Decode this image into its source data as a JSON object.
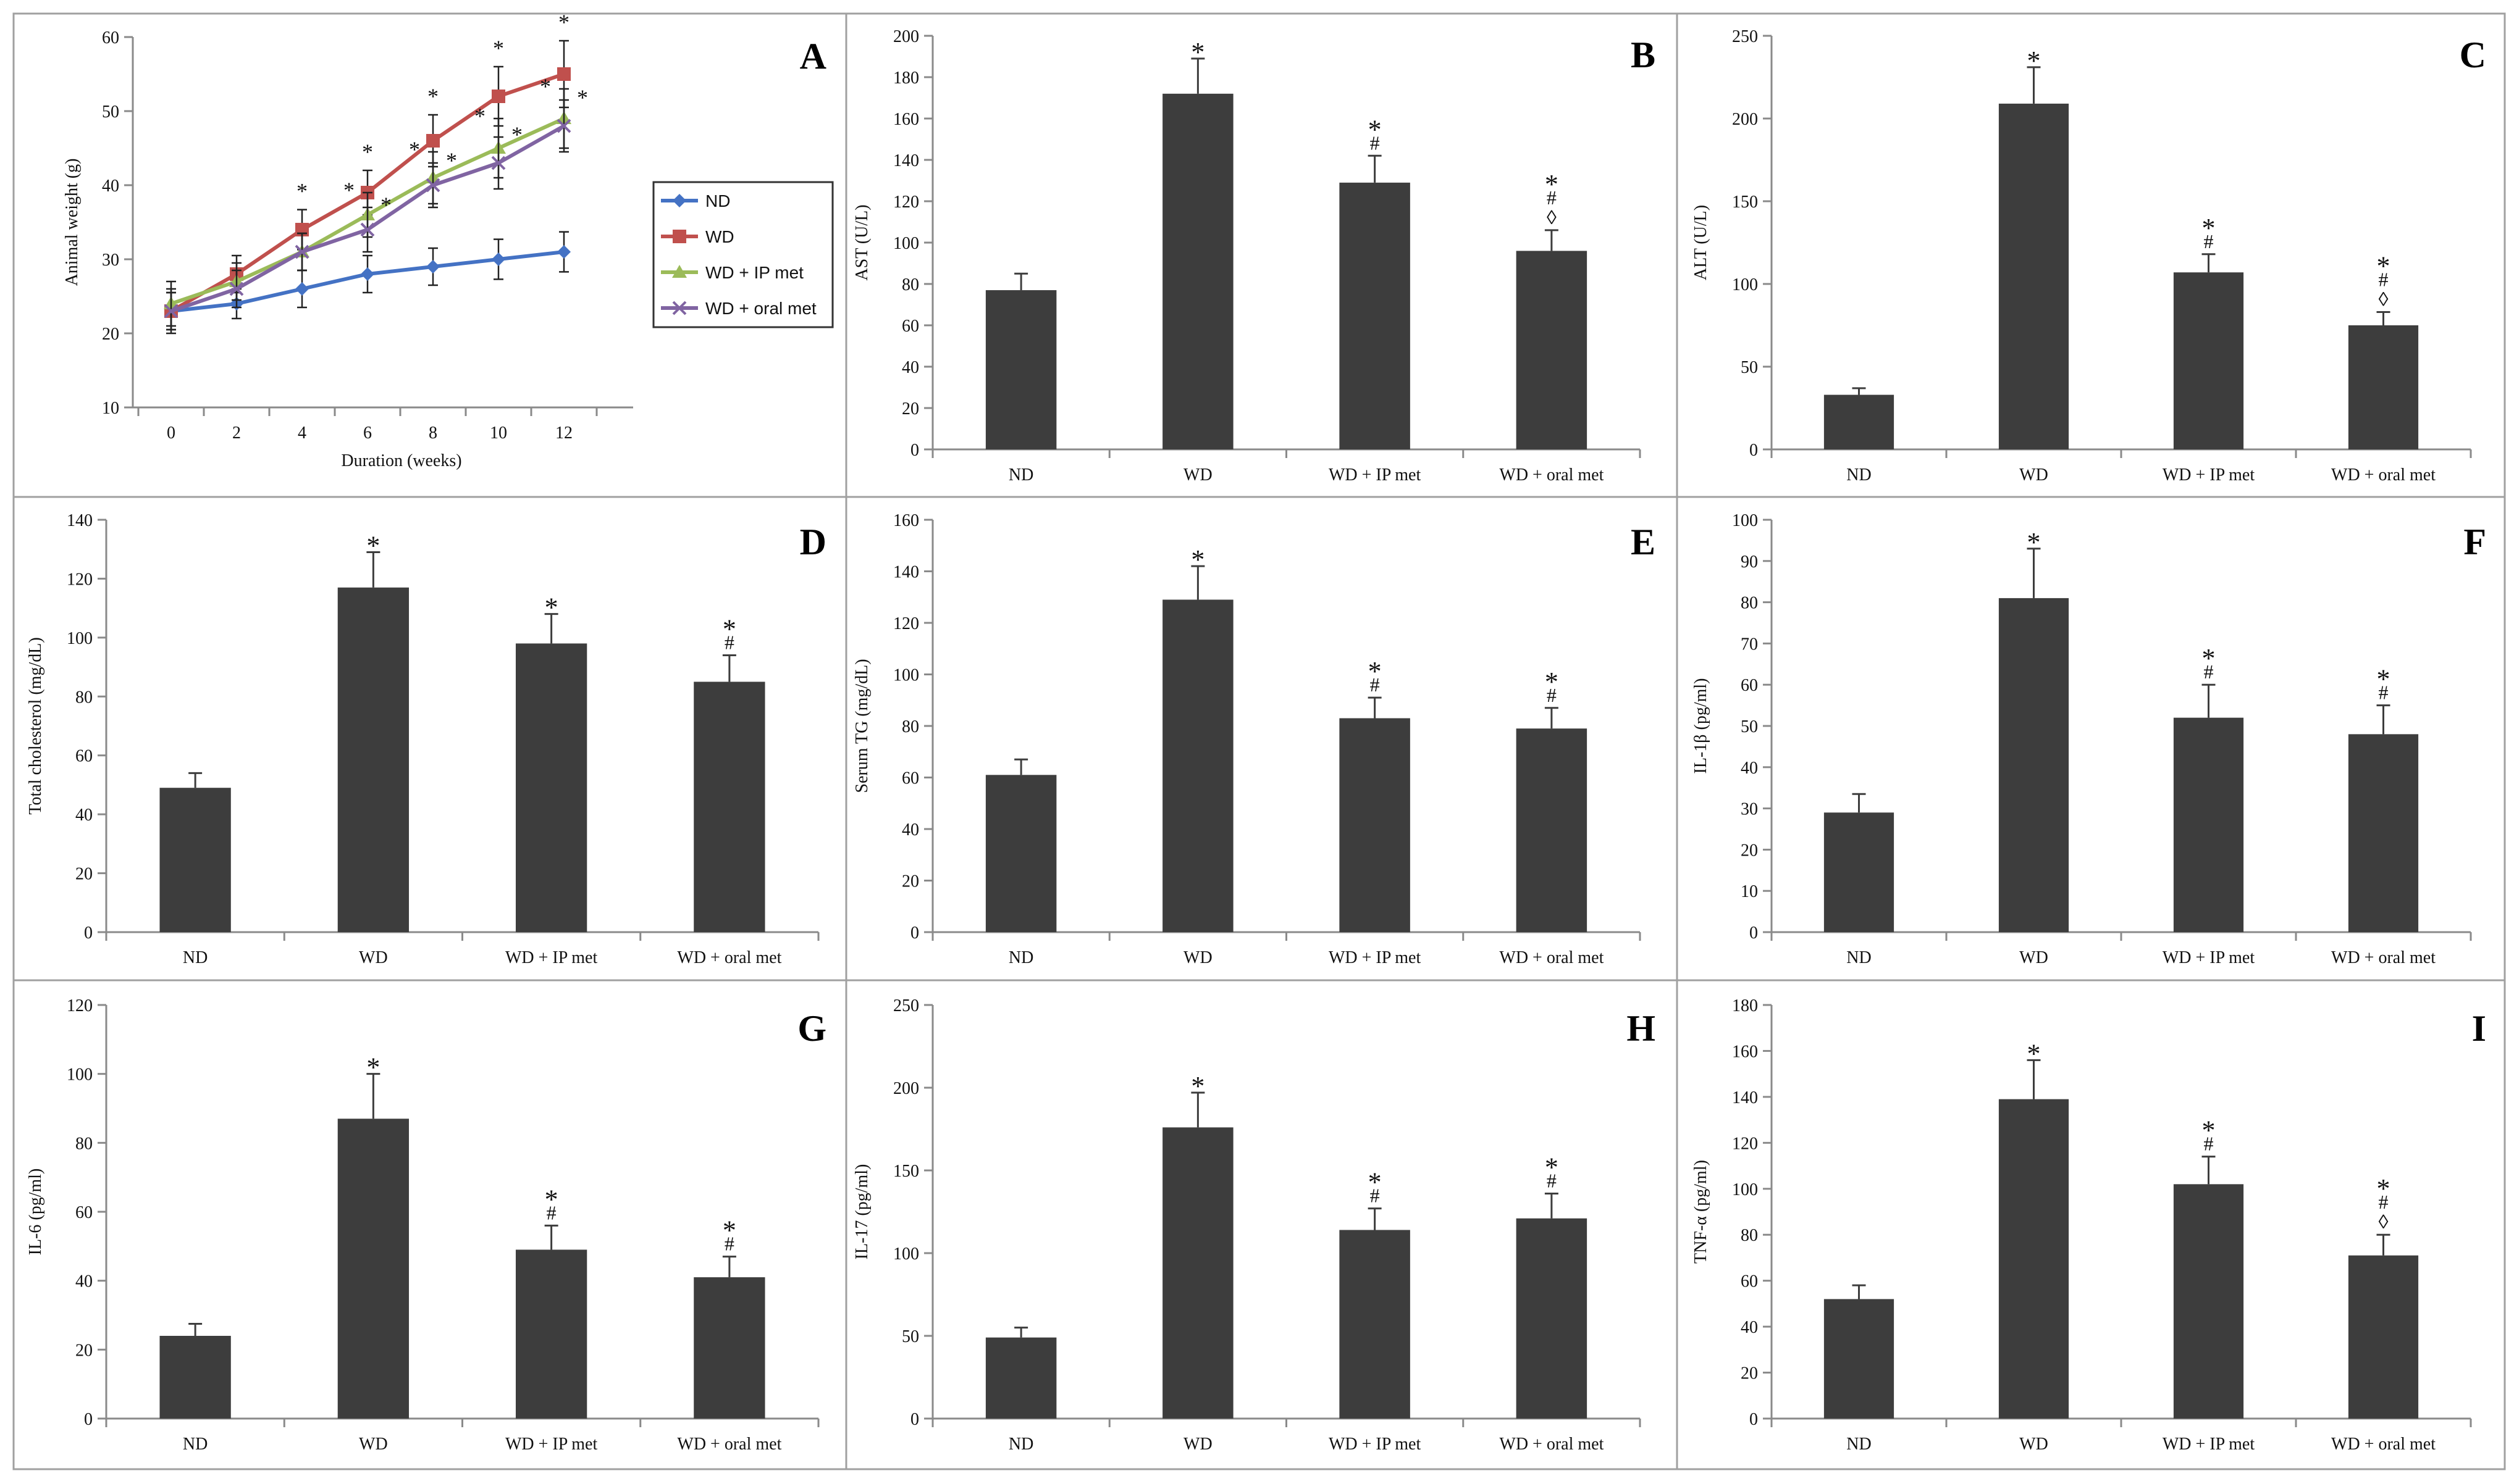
{
  "figure": {
    "colors": {
      "bar": "#3d3d3d",
      "axis": "#8a8a8a",
      "frame": "#a0a0a0",
      "text": "#111111"
    }
  },
  "chart_data": [
    {
      "id": "A",
      "type": "line",
      "letter": "A",
      "xlabel": "Duration (weeks)",
      "ylabel": "Animal weight (g)",
      "ylim": [
        10,
        60
      ],
      "yticks": [
        10,
        20,
        30,
        40,
        50,
        60
      ],
      "x": [
        0,
        2,
        4,
        6,
        8,
        10,
        12
      ],
      "xticks": [
        "0",
        "2",
        "4",
        "6",
        "8",
        "10",
        "12"
      ],
      "legend_position": "right",
      "series": [
        {
          "name": "ND",
          "color": "#4472c4",
          "marker": "diamond",
          "values": [
            23,
            24,
            26,
            28,
            29,
            30,
            31
          ],
          "errors": [
            3,
            2,
            2.5,
            2.5,
            2.5,
            2.7,
            2.7
          ],
          "sig": [
            "",
            "",
            "",
            "",
            "",
            "",
            ""
          ]
        },
        {
          "name": "WD",
          "color": "#c0504d",
          "marker": "square",
          "values": [
            23,
            28,
            34,
            39,
            46,
            52,
            55
          ],
          "errors": [
            2.5,
            2.5,
            2.7,
            3,
            3.5,
            4,
            4.5
          ],
          "sig": [
            "",
            "",
            "*",
            "*",
            "*",
            "*",
            "*"
          ]
        },
        {
          "name": "WD + IP met",
          "color": "#9bbb59",
          "marker": "triangle",
          "values": [
            24,
            27,
            31,
            36,
            41,
            45,
            49
          ],
          "errors": [
            3,
            2.5,
            2.5,
            3,
            3.5,
            4,
            4
          ],
          "sig": [
            "",
            "",
            "",
            "*",
            "*",
            "*",
            "*"
          ]
        },
        {
          "name": "WD + oral met",
          "color": "#8064a2",
          "marker": "x",
          "values": [
            23,
            26,
            31,
            34,
            40,
            43,
            48
          ],
          "errors": [
            2.5,
            2.5,
            2.5,
            3,
            3,
            3.5,
            3.5
          ],
          "sig": [
            "",
            "",
            "",
            "*",
            "*",
            "*",
            "*"
          ]
        }
      ]
    },
    {
      "id": "B",
      "type": "bar",
      "letter": "B",
      "ylabel": "AST (U/L)",
      "ylim": [
        0,
        200
      ],
      "yticks": [
        0,
        20,
        40,
        60,
        80,
        100,
        120,
        140,
        160,
        180,
        200
      ],
      "categories": [
        "ND",
        "WD",
        "WD + IP met",
        "WD + oral met"
      ],
      "values": [
        77,
        172,
        129,
        96
      ],
      "errors": [
        8,
        17,
        13,
        10
      ],
      "annotations": [
        [],
        [
          "*"
        ],
        [
          "*",
          "#"
        ],
        [
          "*",
          "#",
          "◊"
        ]
      ]
    },
    {
      "id": "C",
      "type": "bar",
      "letter": "C",
      "ylabel": "ALT (U/L)",
      "ylim": [
        0,
        250
      ],
      "yticks": [
        0,
        50,
        100,
        150,
        200,
        250
      ],
      "categories": [
        "ND",
        "WD",
        "WD + IP met",
        "WD + oral met"
      ],
      "values": [
        33,
        209,
        107,
        75
      ],
      "errors": [
        4,
        22,
        11,
        8
      ],
      "annotations": [
        [],
        [
          "*"
        ],
        [
          "*",
          "#"
        ],
        [
          "*",
          "#",
          "◊"
        ]
      ]
    },
    {
      "id": "D",
      "type": "bar",
      "letter": "D",
      "ylabel": "Total cholesterol (mg/dL)",
      "ylim": [
        0,
        140
      ],
      "yticks": [
        0,
        20,
        40,
        60,
        80,
        100,
        120,
        140
      ],
      "categories": [
        "ND",
        "WD",
        "WD + IP met",
        "WD + oral met"
      ],
      "values": [
        49,
        117,
        98,
        85
      ],
      "errors": [
        5,
        12,
        10,
        9
      ],
      "annotations": [
        [],
        [
          "*"
        ],
        [
          "*"
        ],
        [
          "*",
          "#"
        ]
      ]
    },
    {
      "id": "E",
      "type": "bar",
      "letter": "E",
      "ylabel": "Serum TG (mg/dL)",
      "ylim": [
        0,
        160
      ],
      "yticks": [
        0,
        20,
        40,
        60,
        80,
        100,
        120,
        140,
        160
      ],
      "categories": [
        "ND",
        "WD",
        "WD + IP met",
        "WD + oral met"
      ],
      "values": [
        61,
        129,
        83,
        79
      ],
      "errors": [
        6,
        13,
        8,
        8
      ],
      "annotations": [
        [],
        [
          "*"
        ],
        [
          "*",
          "#"
        ],
        [
          "*",
          "#"
        ]
      ]
    },
    {
      "id": "F",
      "type": "bar",
      "letter": "F",
      "ylabel": "IL-1β (pg/ml)",
      "ylim": [
        0,
        100
      ],
      "yticks": [
        0,
        10,
        20,
        30,
        40,
        50,
        60,
        70,
        80,
        90,
        100
      ],
      "categories": [
        "ND",
        "WD",
        "WD + IP met",
        "WD + oral met"
      ],
      "values": [
        29,
        81,
        52,
        48
      ],
      "errors": [
        4.5,
        12,
        8,
        7
      ],
      "annotations": [
        [],
        [
          "*"
        ],
        [
          "*",
          "#"
        ],
        [
          "*",
          "#"
        ]
      ]
    },
    {
      "id": "G",
      "type": "bar",
      "letter": "G",
      "ylabel": "IL-6 (pg/ml)",
      "ylim": [
        0,
        120
      ],
      "yticks": [
        0,
        20,
        40,
        60,
        80,
        100,
        120
      ],
      "categories": [
        "ND",
        "WD",
        "WD + IP met",
        "WD + oral met"
      ],
      "values": [
        24,
        87,
        49,
        41
      ],
      "errors": [
        3.5,
        13,
        7,
        6
      ],
      "annotations": [
        [],
        [
          "*"
        ],
        [
          "*",
          "#"
        ],
        [
          "*",
          "#"
        ]
      ]
    },
    {
      "id": "H",
      "type": "bar",
      "letter": "H",
      "ylabel": "IL-17 (pg/ml)",
      "ylim": [
        0,
        250
      ],
      "yticks": [
        0,
        50,
        100,
        150,
        200,
        250
      ],
      "categories": [
        "ND",
        "WD",
        "WD + IP met",
        "WD + oral met"
      ],
      "values": [
        49,
        176,
        114,
        121
      ],
      "errors": [
        6,
        21,
        13,
        15
      ],
      "annotations": [
        [],
        [
          "*"
        ],
        [
          "*",
          "#"
        ],
        [
          "*",
          "#"
        ]
      ]
    },
    {
      "id": "I",
      "type": "bar",
      "letter": "I",
      "ylabel": "TNF-α (pg/ml)",
      "ylim": [
        0,
        180
      ],
      "yticks": [
        0,
        20,
        40,
        60,
        80,
        100,
        120,
        140,
        160,
        180
      ],
      "categories": [
        "ND",
        "WD",
        "WD + IP met",
        "WD + oral met"
      ],
      "values": [
        52,
        139,
        102,
        71
      ],
      "errors": [
        6,
        17,
        12,
        9
      ],
      "annotations": [
        [],
        [
          "*"
        ],
        [
          "*",
          "#"
        ],
        [
          "*",
          "#",
          "◊"
        ]
      ]
    }
  ]
}
